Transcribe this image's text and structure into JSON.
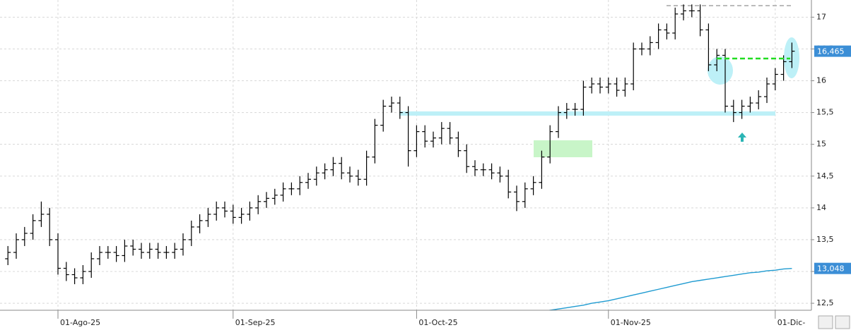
{
  "chart_data": {
    "type": "ohlc",
    "categories": [
      null,
      null,
      null,
      null,
      null,
      null,
      "01-Ago-25",
      null,
      null,
      null,
      null,
      null,
      null,
      null,
      null,
      null,
      null,
      null,
      null,
      null,
      null,
      null,
      null,
      null,
      null,
      null,
      null,
      "01-Sep-25",
      null,
      null,
      null,
      null,
      null,
      null,
      null,
      null,
      null,
      null,
      null,
      null,
      null,
      null,
      null,
      null,
      null,
      null,
      null,
      null,
      null,
      "01-Oct-25",
      null,
      null,
      null,
      null,
      null,
      null,
      null,
      null,
      null,
      null,
      null,
      null,
      null,
      null,
      null,
      null,
      null,
      null,
      null,
      null,
      null,
      null,
      "01-Nov-25",
      null,
      null,
      null,
      null,
      null,
      null,
      null,
      null,
      null,
      null,
      null,
      null,
      null,
      null,
      null,
      null,
      null,
      null,
      null,
      "01-Dic-",
      null,
      null
    ],
    "open": [
      13.2,
      13.3,
      13.5,
      13.6,
      13.8,
      13.9,
      13.5,
      13.05,
      12.95,
      12.9,
      13.0,
      13.2,
      13.3,
      13.3,
      13.25,
      13.4,
      13.35,
      13.3,
      13.35,
      13.3,
      13.3,
      13.35,
      13.5,
      13.7,
      13.8,
      13.9,
      14.0,
      13.95,
      13.85,
      13.9,
      14.0,
      14.1,
      14.15,
      14.2,
      14.3,
      14.3,
      14.4,
      14.45,
      14.55,
      14.6,
      14.7,
      14.55,
      14.5,
      14.45,
      14.8,
      15.3,
      15.6,
      15.65,
      15.5,
      14.9,
      15.2,
      15.05,
      15.1,
      15.25,
      15.1,
      14.9,
      14.65,
      14.6,
      14.6,
      14.55,
      14.5,
      14.25,
      14.1,
      14.3,
      14.4,
      14.8,
      15.2,
      15.5,
      15.55,
      15.55,
      15.9,
      15.95,
      15.9,
      15.95,
      15.85,
      15.95,
      16.5,
      16.5,
      16.6,
      16.8,
      16.75,
      17.05,
      17.1,
      17.1,
      16.8,
      16.25,
      16.4,
      15.6,
      15.5,
      15.6,
      15.65,
      15.75,
      15.95,
      16.1,
      16.3
    ],
    "high": [
      13.4,
      13.6,
      13.7,
      13.9,
      14.1,
      14.0,
      13.6,
      13.15,
      13.05,
      13.1,
      13.3,
      13.4,
      13.4,
      13.4,
      13.5,
      13.5,
      13.45,
      13.45,
      13.45,
      13.4,
      13.45,
      13.6,
      13.8,
      13.9,
      14.0,
      14.1,
      14.1,
      14.05,
      14.0,
      14.1,
      14.2,
      14.25,
      14.3,
      14.4,
      14.4,
      14.5,
      14.55,
      14.65,
      14.7,
      14.8,
      14.8,
      14.65,
      14.6,
      14.9,
      15.4,
      15.7,
      15.75,
      15.75,
      15.6,
      15.3,
      15.3,
      15.2,
      15.35,
      15.35,
      15.2,
      15.0,
      14.75,
      14.7,
      14.7,
      14.65,
      14.6,
      14.35,
      14.4,
      14.5,
      14.9,
      15.3,
      15.6,
      15.65,
      15.65,
      16.0,
      16.05,
      16.05,
      16.05,
      16.05,
      16.05,
      16.6,
      16.6,
      16.7,
      16.9,
      16.9,
      17.15,
      17.2,
      17.2,
      17.2,
      16.9,
      16.5,
      16.5,
      15.7,
      15.7,
      15.75,
      15.85,
      16.05,
      16.2,
      16.4,
      16.6
    ],
    "low": [
      13.1,
      13.2,
      13.4,
      13.5,
      13.7,
      13.4,
      12.95,
      12.85,
      12.8,
      12.8,
      12.9,
      13.1,
      13.2,
      13.15,
      13.15,
      13.25,
      13.2,
      13.2,
      13.2,
      13.2,
      13.2,
      13.25,
      13.4,
      13.6,
      13.7,
      13.8,
      13.85,
      13.75,
      13.75,
      13.8,
      13.9,
      14.0,
      14.05,
      14.1,
      14.2,
      14.2,
      14.3,
      14.35,
      14.45,
      14.5,
      14.45,
      14.4,
      14.35,
      14.35,
      14.7,
      15.2,
      15.5,
      15.4,
      14.65,
      14.8,
      14.95,
      14.95,
      15.0,
      15.0,
      14.8,
      14.55,
      14.5,
      14.5,
      14.45,
      14.4,
      14.15,
      13.95,
      14.0,
      14.2,
      14.3,
      14.7,
      15.1,
      15.4,
      15.45,
      15.45,
      15.8,
      15.8,
      15.8,
      15.75,
      15.75,
      15.85,
      16.4,
      16.4,
      16.5,
      16.65,
      16.65,
      16.95,
      17.0,
      16.7,
      16.15,
      16.15,
      15.5,
      15.35,
      15.4,
      15.5,
      15.55,
      15.65,
      15.85,
      16.0,
      16.2
    ],
    "close": [
      13.3,
      13.5,
      13.6,
      13.8,
      13.9,
      13.5,
      13.05,
      12.95,
      12.9,
      13.0,
      13.2,
      13.3,
      13.3,
      13.25,
      13.4,
      13.35,
      13.3,
      13.35,
      13.3,
      13.3,
      13.35,
      13.5,
      13.7,
      13.8,
      13.9,
      14.0,
      13.95,
      13.85,
      13.9,
      14.0,
      14.1,
      14.15,
      14.2,
      14.3,
      14.3,
      14.4,
      14.45,
      14.55,
      14.6,
      14.7,
      14.55,
      14.5,
      14.45,
      14.8,
      15.3,
      15.6,
      15.65,
      15.5,
      14.9,
      15.2,
      15.05,
      15.1,
      15.25,
      15.1,
      14.9,
      14.65,
      14.6,
      14.6,
      14.55,
      14.5,
      14.25,
      14.1,
      14.3,
      14.4,
      14.8,
      15.2,
      15.5,
      15.55,
      15.55,
      15.9,
      15.95,
      15.9,
      15.95,
      15.85,
      15.95,
      16.5,
      16.5,
      16.6,
      16.8,
      16.75,
      17.05,
      17.1,
      17.1,
      16.8,
      16.25,
      16.4,
      15.6,
      15.5,
      15.6,
      15.65,
      15.75,
      15.95,
      16.1,
      16.3,
      16.465
    ],
    "close_label": "16,465",
    "color": "#000000",
    "label_color": "#3b8ed6",
    "ma": {
      "color": "#1f9bd1",
      "last_label": "13,048",
      "values": [
        null,
        null,
        null,
        null,
        null,
        null,
        null,
        null,
        null,
        null,
        null,
        null,
        null,
        null,
        null,
        null,
        null,
        null,
        null,
        null,
        null,
        null,
        null,
        null,
        null,
        null,
        null,
        null,
        null,
        null,
        null,
        null,
        null,
        null,
        null,
        null,
        null,
        null,
        null,
        null,
        null,
        null,
        null,
        null,
        null,
        null,
        null,
        null,
        null,
        null,
        null,
        null,
        null,
        null,
        null,
        null,
        null,
        null,
        null,
        null,
        null,
        null,
        null,
        null,
        12.37,
        12.39,
        12.41,
        12.43,
        12.45,
        12.47,
        12.5,
        12.52,
        12.54,
        12.57,
        12.6,
        12.63,
        12.66,
        12.69,
        12.72,
        12.75,
        12.78,
        12.81,
        12.84,
        12.86,
        12.88,
        12.9,
        12.92,
        12.94,
        12.96,
        12.98,
        12.99,
        13.01,
        13.02,
        13.04,
        13.048
      ]
    },
    "ylim": [
      12.39,
      17.27
    ],
    "yticks": [
      {
        "value": 12.5,
        "label": "12,5"
      },
      13,
      {
        "value": 13.5,
        "label": "13,5"
      },
      14,
      {
        "value": 14.5,
        "label": "14,5"
      },
      15,
      {
        "value": 15.5,
        "label": "15,5"
      },
      16,
      {
        "value": 16.5,
        "label": "16,5"
      },
      17
    ],
    "grid": true
  }
}
